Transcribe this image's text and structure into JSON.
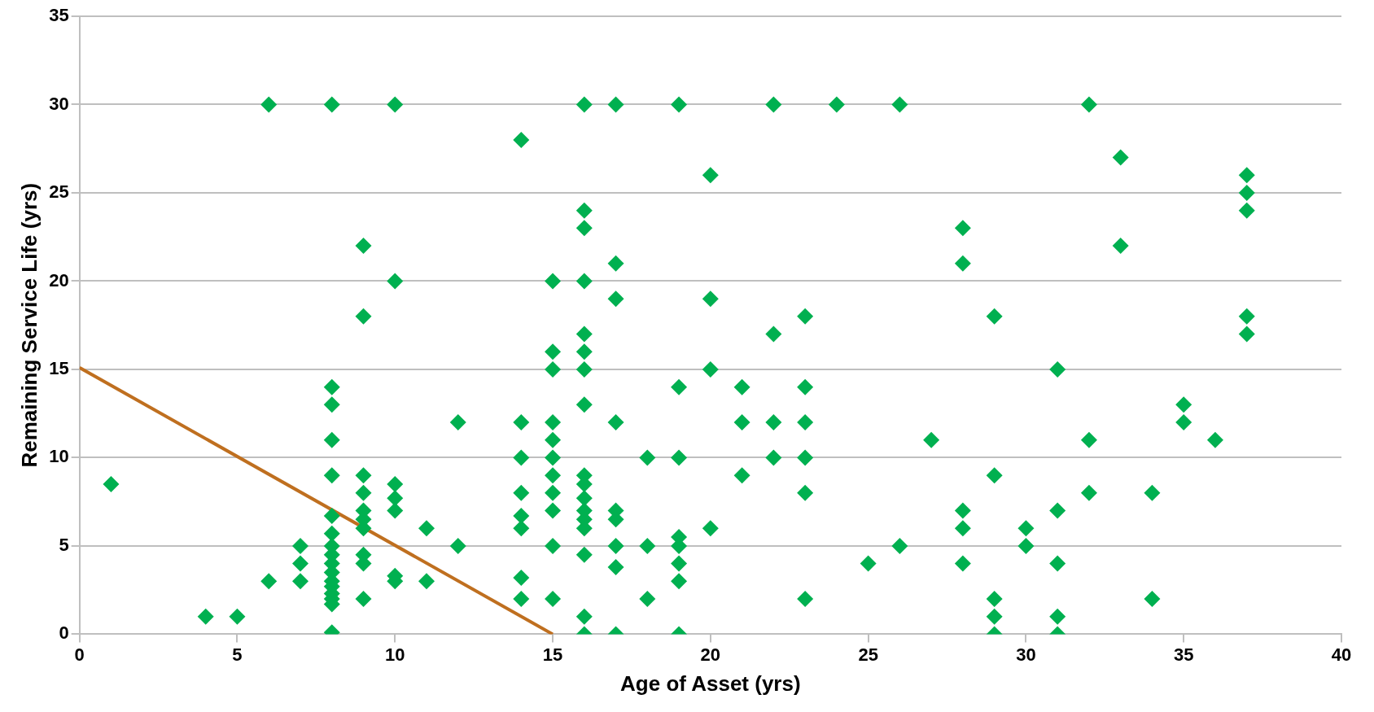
{
  "chart_data": {
    "type": "scatter",
    "xlabel": "Age of Asset (yrs)",
    "ylabel": "Remaining Service Life (yrs)",
    "xlim": [
      0,
      40
    ],
    "xticks": [
      0,
      5,
      10,
      15,
      20,
      25,
      30,
      35,
      40
    ],
    "ylim": [
      0,
      35
    ],
    "yticks": [
      0,
      5,
      10,
      15,
      20,
      25,
      30,
      35
    ],
    "grid": "y",
    "legend": false,
    "marker": "diamond",
    "series": [
      {
        "type": "scatter",
        "color": "#00b050",
        "x": [
          1,
          4,
          5,
          6,
          6,
          7,
          7,
          7,
          8,
          8,
          8,
          8,
          8,
          8,
          8,
          8,
          8,
          8,
          8,
          8,
          8,
          8,
          8,
          8,
          8,
          9,
          9,
          9,
          9,
          9,
          9,
          9,
          9,
          9,
          9,
          10,
          10,
          10,
          10,
          10,
          10,
          10,
          11,
          11,
          12,
          12,
          14,
          14,
          14,
          14,
          14,
          14,
          14,
          14,
          15,
          15,
          15,
          15,
          15,
          15,
          15,
          15,
          15,
          15,
          15,
          16,
          16,
          16,
          16,
          16,
          16,
          16,
          16,
          16,
          16,
          16,
          16,
          16,
          16,
          16,
          16,
          16,
          17,
          17,
          17,
          17,
          17,
          17,
          17,
          17,
          17,
          18,
          18,
          18,
          19,
          19,
          19,
          19,
          19,
          19,
          19,
          19,
          20,
          20,
          20,
          20,
          21,
          21,
          21,
          22,
          22,
          22,
          22,
          23,
          23,
          23,
          23,
          23,
          23,
          24,
          25,
          26,
          26,
          27,
          28,
          28,
          28,
          28,
          28,
          29,
          29,
          29,
          29,
          29,
          30,
          30,
          31,
          31,
          31,
          31,
          31,
          32,
          32,
          32,
          33,
          33,
          34,
          34,
          35,
          35,
          36,
          37,
          37,
          37,
          37,
          37
        ],
        "values": [
          8.5,
          1,
          1,
          3,
          30,
          5,
          4,
          3,
          30,
          14,
          13,
          11,
          9,
          6.7,
          5.7,
          5,
          4.5,
          4,
          3.5,
          3,
          2.7,
          2.3,
          2,
          1.7,
          0.1,
          22,
          18,
          9,
          8,
          7,
          6.5,
          6,
          4.5,
          4,
          2,
          30,
          20,
          8.5,
          7.7,
          7,
          3.3,
          3,
          6,
          3,
          12,
          5,
          28,
          12,
          10,
          8,
          6.7,
          6,
          3.2,
          2,
          20,
          16,
          15,
          12,
          11,
          10,
          9,
          8,
          7,
          5,
          2,
          30,
          24,
          23,
          20,
          17,
          16,
          15,
          13,
          9,
          8.5,
          7.7,
          7,
          6.5,
          6,
          4.5,
          1,
          0,
          30,
          21,
          19,
          12,
          7,
          6.5,
          5,
          3.8,
          0,
          10,
          5,
          2,
          30,
          14,
          10,
          5.5,
          5,
          4,
          3,
          0,
          26,
          19,
          15,
          6,
          14,
          12,
          9,
          30,
          17,
          12,
          10,
          18,
          14,
          12,
          10,
          8,
          2,
          30,
          4,
          30,
          5,
          11,
          23,
          21,
          7,
          6,
          4,
          18,
          9,
          2,
          1,
          0,
          6,
          5,
          15,
          7,
          4,
          1,
          0,
          30,
          11,
          8,
          27,
          22,
          8,
          2,
          13,
          12,
          11,
          26,
          25,
          24,
          18,
          17
        ]
      },
      {
        "type": "line",
        "color": "#bf6f1f",
        "marker": "none",
        "x": [
          0,
          15
        ],
        "values": [
          15.1,
          0
        ]
      }
    ]
  }
}
